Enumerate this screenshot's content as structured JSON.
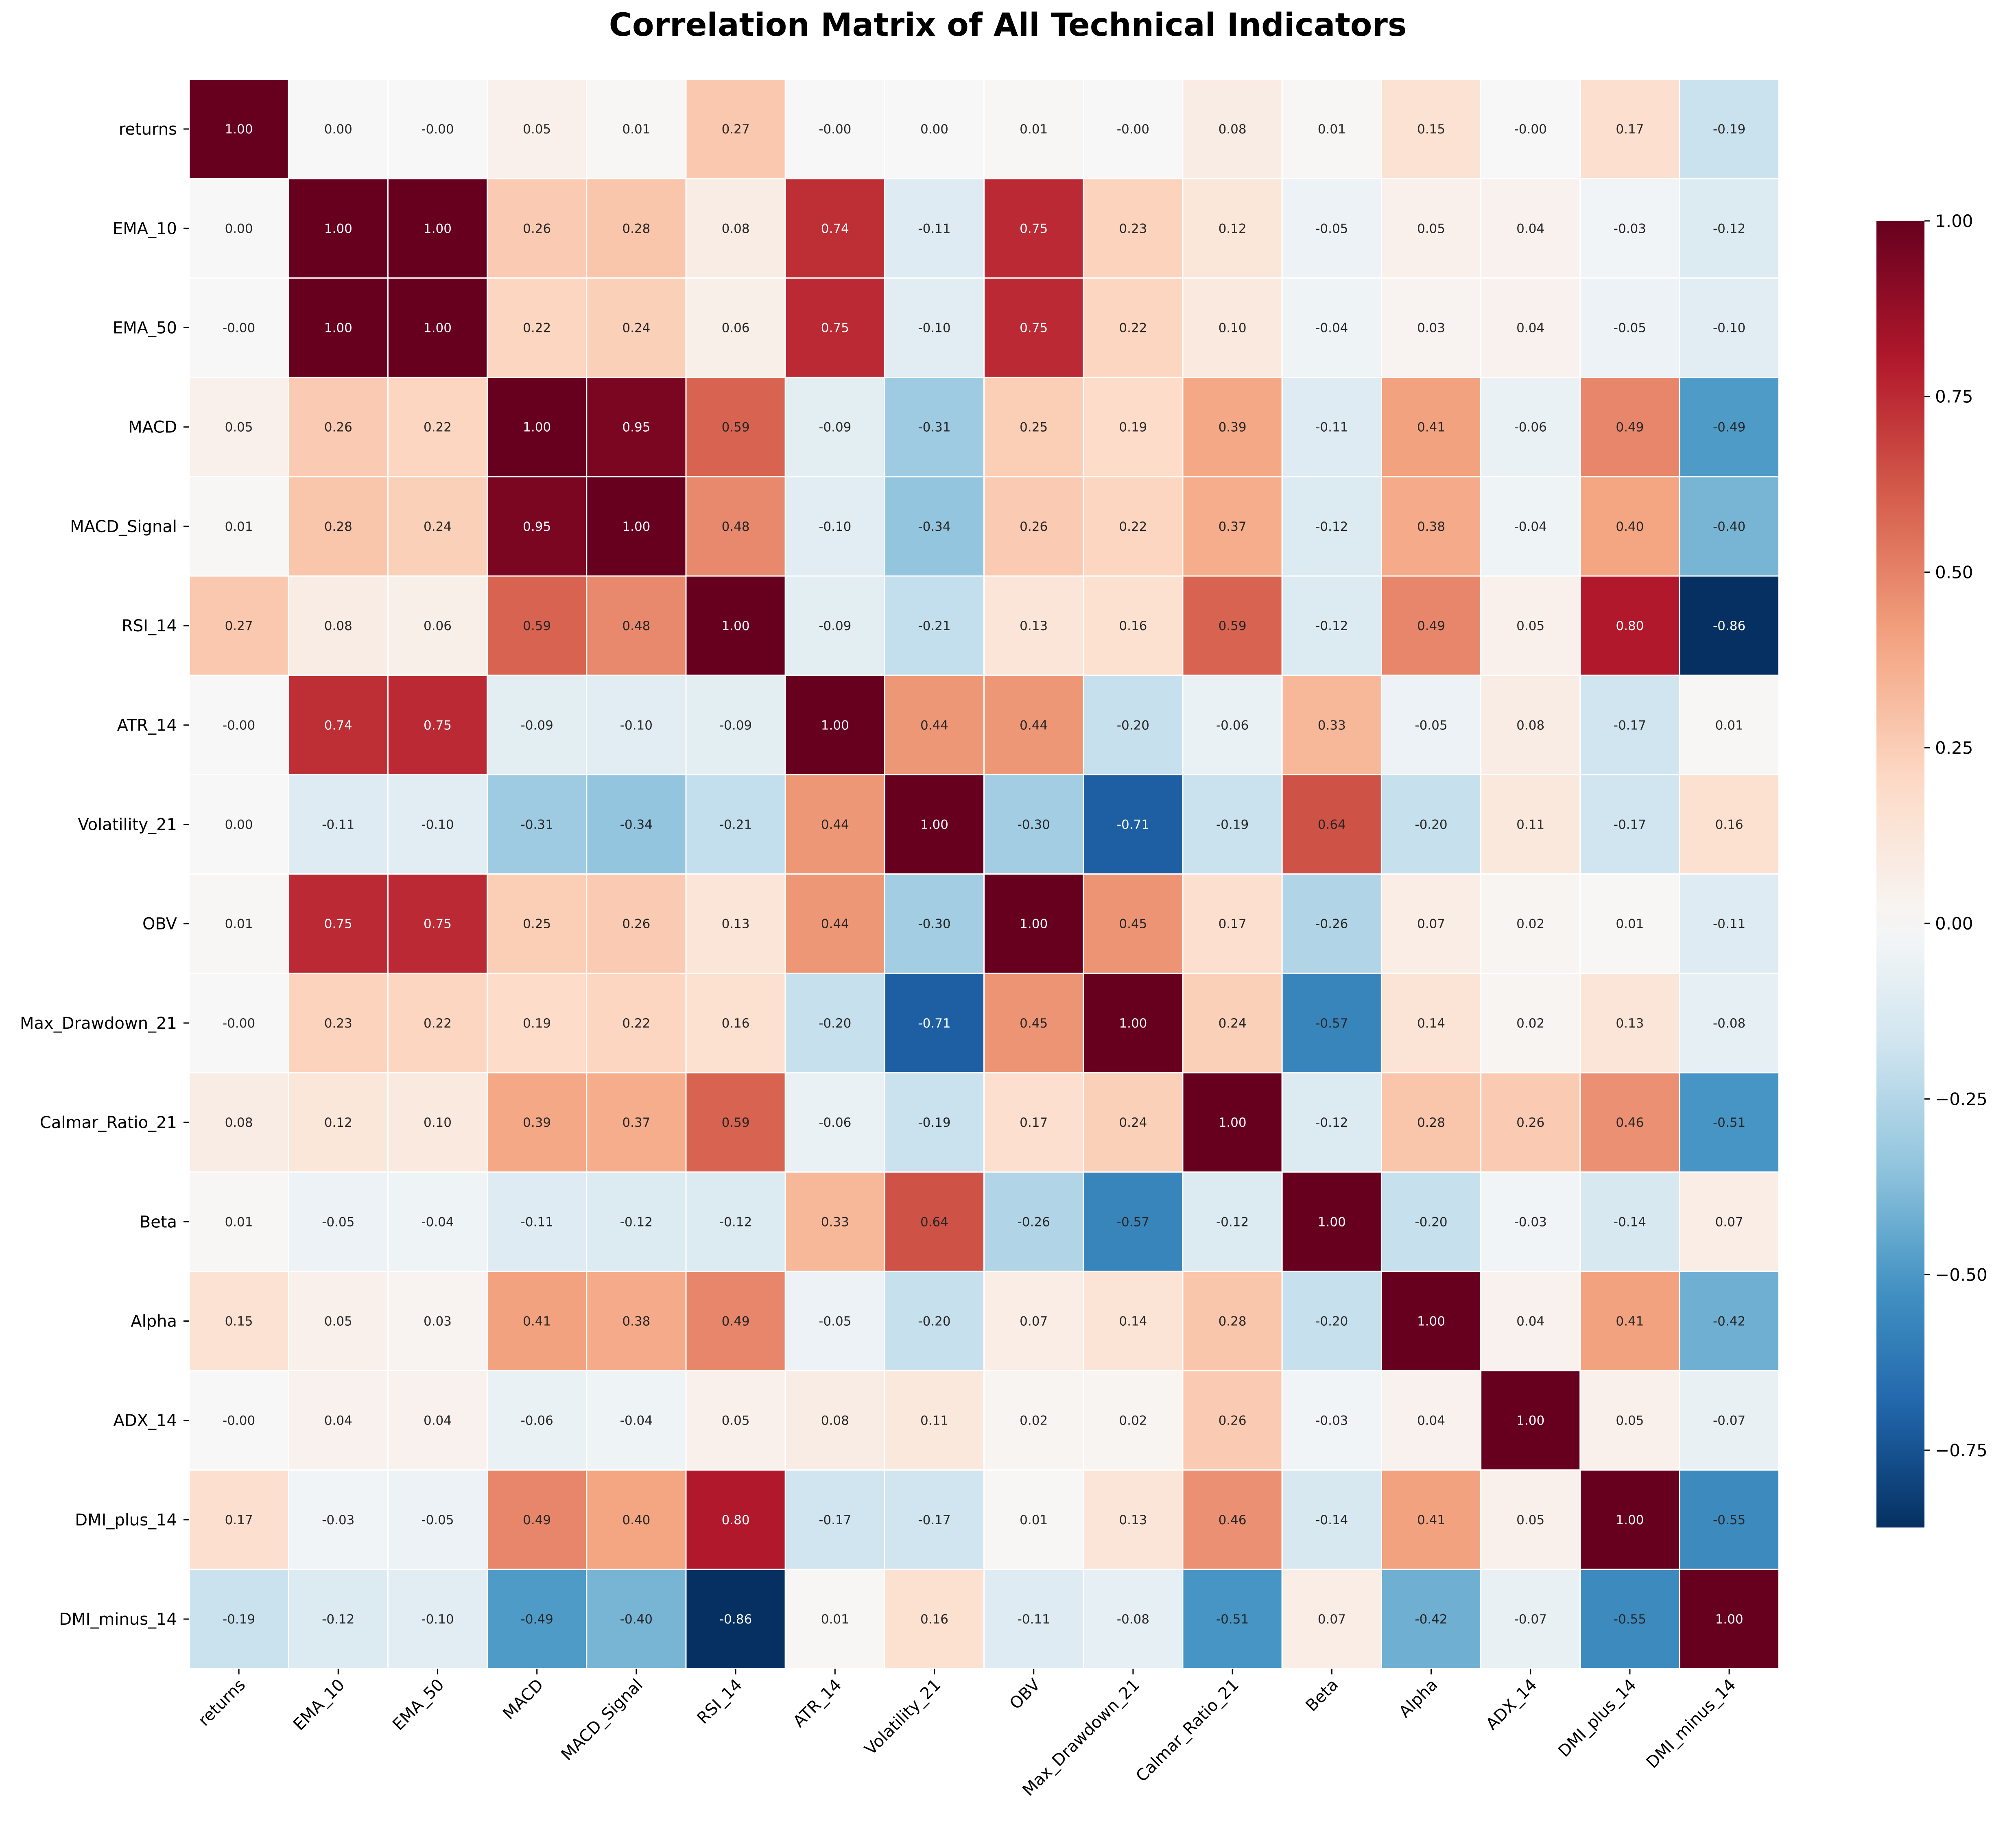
{
  "chart_data": {
    "type": "heatmap",
    "title": "Correlation Matrix of All Technical Indicators",
    "xlabel": "",
    "ylabel": "",
    "labels": [
      "returns",
      "EMA_10",
      "EMA_50",
      "MACD",
      "MACD_Signal",
      "RSI_14",
      "ATR_14",
      "Volatility_21",
      "OBV",
      "Max_Drawdown_21",
      "Calmar_Ratio_21",
      "Beta",
      "Alpha",
      "ADX_14",
      "DMI_plus_14",
      "DMI_minus_14"
    ],
    "values": [
      [
        1.0,
        0.0,
        -0.0,
        0.05,
        0.01,
        0.27,
        -0.0,
        0.0,
        0.01,
        -0.0,
        0.08,
        0.01,
        0.15,
        -0.0,
        0.17,
        -0.19
      ],
      [
        0.0,
        1.0,
        1.0,
        0.26,
        0.28,
        0.08,
        0.74,
        -0.11,
        0.75,
        0.23,
        0.12,
        -0.05,
        0.05,
        0.04,
        -0.03,
        -0.12
      ],
      [
        -0.0,
        1.0,
        1.0,
        0.22,
        0.24,
        0.06,
        0.75,
        -0.1,
        0.75,
        0.22,
        0.1,
        -0.04,
        0.03,
        0.04,
        -0.05,
        -0.1
      ],
      [
        0.05,
        0.26,
        0.22,
        1.0,
        0.95,
        0.59,
        -0.09,
        -0.31,
        0.25,
        0.19,
        0.39,
        -0.11,
        0.41,
        -0.06,
        0.49,
        -0.49
      ],
      [
        0.01,
        0.28,
        0.24,
        0.95,
        1.0,
        0.48,
        -0.1,
        -0.34,
        0.26,
        0.22,
        0.37,
        -0.12,
        0.38,
        -0.04,
        0.4,
        -0.4
      ],
      [
        0.27,
        0.08,
        0.06,
        0.59,
        0.48,
        1.0,
        -0.09,
        -0.21,
        0.13,
        0.16,
        0.59,
        -0.12,
        0.49,
        0.05,
        0.8,
        -0.86
      ],
      [
        -0.0,
        0.74,
        0.75,
        -0.09,
        -0.1,
        -0.09,
        1.0,
        0.44,
        0.44,
        -0.2,
        -0.06,
        0.33,
        -0.05,
        0.08,
        -0.17,
        0.01
      ],
      [
        0.0,
        -0.11,
        -0.1,
        -0.31,
        -0.34,
        -0.21,
        0.44,
        1.0,
        -0.3,
        -0.71,
        -0.19,
        0.64,
        -0.2,
        0.11,
        -0.17,
        0.16
      ],
      [
        0.01,
        0.75,
        0.75,
        0.25,
        0.26,
        0.13,
        0.44,
        -0.3,
        1.0,
        0.45,
        0.17,
        -0.26,
        0.07,
        0.02,
        0.01,
        -0.11
      ],
      [
        -0.0,
        0.23,
        0.22,
        0.19,
        0.22,
        0.16,
        -0.2,
        -0.71,
        0.45,
        1.0,
        0.24,
        -0.57,
        0.14,
        0.02,
        0.13,
        -0.08
      ],
      [
        0.08,
        0.12,
        0.1,
        0.39,
        0.37,
        0.59,
        -0.06,
        -0.19,
        0.17,
        0.24,
        1.0,
        -0.12,
        0.28,
        0.26,
        0.46,
        -0.51
      ],
      [
        0.01,
        -0.05,
        -0.04,
        -0.11,
        -0.12,
        -0.12,
        0.33,
        0.64,
        -0.26,
        -0.57,
        -0.12,
        1.0,
        -0.2,
        -0.03,
        -0.14,
        0.07
      ],
      [
        0.15,
        0.05,
        0.03,
        0.41,
        0.38,
        0.49,
        -0.05,
        -0.2,
        0.07,
        0.14,
        0.28,
        -0.2,
        1.0,
        0.04,
        0.41,
        -0.42
      ],
      [
        -0.0,
        0.04,
        0.04,
        -0.06,
        -0.04,
        0.05,
        0.08,
        0.11,
        0.02,
        0.02,
        0.26,
        -0.03,
        0.04,
        1.0,
        0.05,
        -0.07
      ],
      [
        0.17,
        -0.03,
        -0.05,
        0.49,
        0.4,
        0.8,
        -0.17,
        -0.17,
        0.01,
        0.13,
        0.46,
        -0.14,
        0.41,
        0.05,
        1.0,
        -0.55
      ],
      [
        -0.19,
        -0.12,
        -0.1,
        -0.49,
        -0.4,
        -0.86,
        0.01,
        0.16,
        -0.11,
        -0.08,
        -0.51,
        0.07,
        -0.42,
        -0.07,
        -0.55,
        1.0
      ]
    ],
    "value_format": "2 decimals",
    "colorscale": "RdBu_r",
    "color_range": [
      -0.86,
      1.0
    ],
    "colorbar": {
      "position": "right",
      "tick_values": [
        -0.75,
        -0.5,
        -0.25,
        0.0,
        0.25,
        0.5,
        0.75,
        1.0
      ],
      "tick_labels": [
        "−0.75",
        "−0.50",
        "−0.25",
        "0.00",
        "0.25",
        "0.50",
        "0.75",
        "1.00"
      ]
    },
    "grid": false,
    "cell_border_color": "#ffffff"
  }
}
